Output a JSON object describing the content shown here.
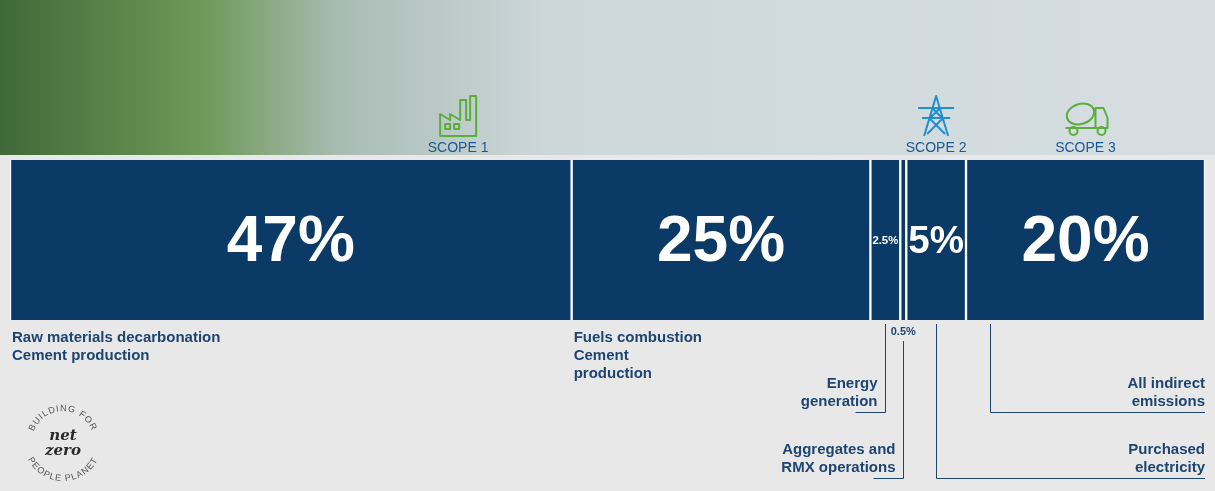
{
  "chart_data": {
    "type": "bar",
    "orientation": "horizontal",
    "stacked": true,
    "data_labels": true,
    "tick_labels": false,
    "grid": false,
    "xlim": [
      0,
      100
    ],
    "color": "#0b3a66",
    "series": [
      {
        "name": "Raw materials decarbonation\nCement production",
        "group": "SCOPE 1",
        "values": [
          47
        ],
        "value_labels": [
          "47%"
        ]
      },
      {
        "name": "Fuels combustion\nCement\nproduction",
        "group": "SCOPE 1",
        "values": [
          25
        ],
        "value_labels": [
          "25%"
        ]
      },
      {
        "name": "Energy\ngeneration",
        "group": "SCOPE 1",
        "values": [
          2.5
        ],
        "value_labels": [
          "2.5%"
        ]
      },
      {
        "name": "Aggregates and\nRMX operations",
        "group": "SCOPE 1",
        "values": [
          0.5
        ],
        "value_labels": [
          "0.5%"
        ]
      },
      {
        "name": "Purchased\nelectricity",
        "group": "SCOPE 2",
        "values": [
          5
        ],
        "value_labels": [
          "5%"
        ]
      },
      {
        "name": "All indirect\nemissions",
        "group": "SCOPE 3",
        "values": [
          20
        ],
        "value_labels": [
          "20%"
        ]
      }
    ]
  },
  "badge": {
    "ring_top": "BUILDING FOR",
    "center": [
      "net",
      "zero"
    ],
    "ring_bottom": "PEOPLE PLANET"
  }
}
